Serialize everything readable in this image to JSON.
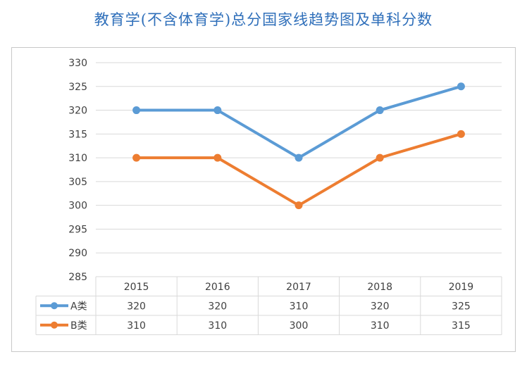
{
  "page": {
    "title": "教育学(不含体育学)总分国家线趋势图及单科分数"
  },
  "chart_data": {
    "type": "line",
    "title": "教育学(不含体育学)总分国家线趋势图及单科分数",
    "xlabel": "",
    "ylabel": "",
    "categories": [
      "2015",
      "2016",
      "2017",
      "2018",
      "2019"
    ],
    "ylim": [
      285,
      330
    ],
    "yticks": [
      285,
      290,
      295,
      300,
      305,
      310,
      315,
      320,
      325,
      330
    ],
    "grid": true,
    "legend": "data-table",
    "series": [
      {
        "name": "A类",
        "values": [
          320,
          320,
          310,
          320,
          325
        ],
        "color": "#5b9bd5"
      },
      {
        "name": "B类",
        "values": [
          310,
          310,
          300,
          310,
          315
        ],
        "color": "#ed7d31"
      }
    ]
  }
}
